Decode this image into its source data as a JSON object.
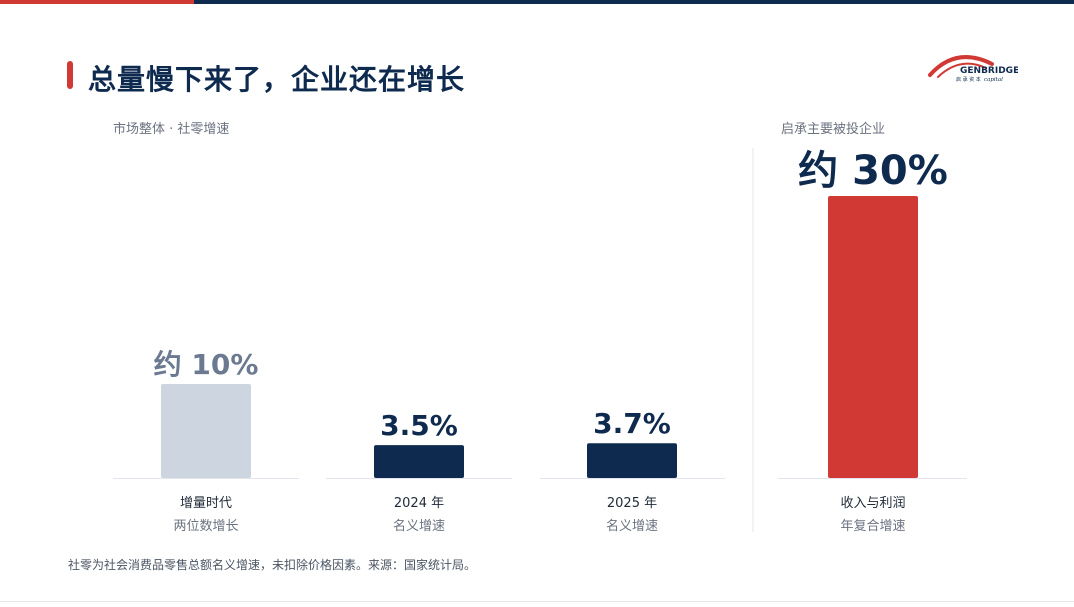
{
  "page": {
    "title": "总量慢下来了，企业还在增长",
    "market_label": "市场整体 · 社零增速",
    "portfolio_label": "启承主要被投企业",
    "footnote": "社零为社会消费品零售总额名义增速，未扣除价格因素。来源：国家统计局。"
  },
  "logo": {
    "name": "GENBRIDGE",
    "sub_cn": "启 承 资 本",
    "sub_en": "capital"
  },
  "colors": {
    "red": "#d13a34",
    "navy": "#0f2a4f",
    "light": "#cdd6e0",
    "light_text": "#6b7a90",
    "gray": "#6b7280"
  },
  "chart_data": {
    "type": "bar",
    "ylim": [
      0,
      32
    ],
    "grid": false,
    "categories": [
      "增量时代",
      "2024 年",
      "2025 年",
      "收入与利润"
    ],
    "subcategories": [
      "两位数增长",
      "名义增速",
      "名义增速",
      "年复合增速"
    ],
    "values": [
      10,
      3.5,
      3.7,
      30
    ],
    "data_labels": [
      "约 10%",
      "3.5%",
      "3.7%",
      "约 30%"
    ],
    "groups": [
      "market",
      "market",
      "market",
      "portfolio"
    ]
  }
}
